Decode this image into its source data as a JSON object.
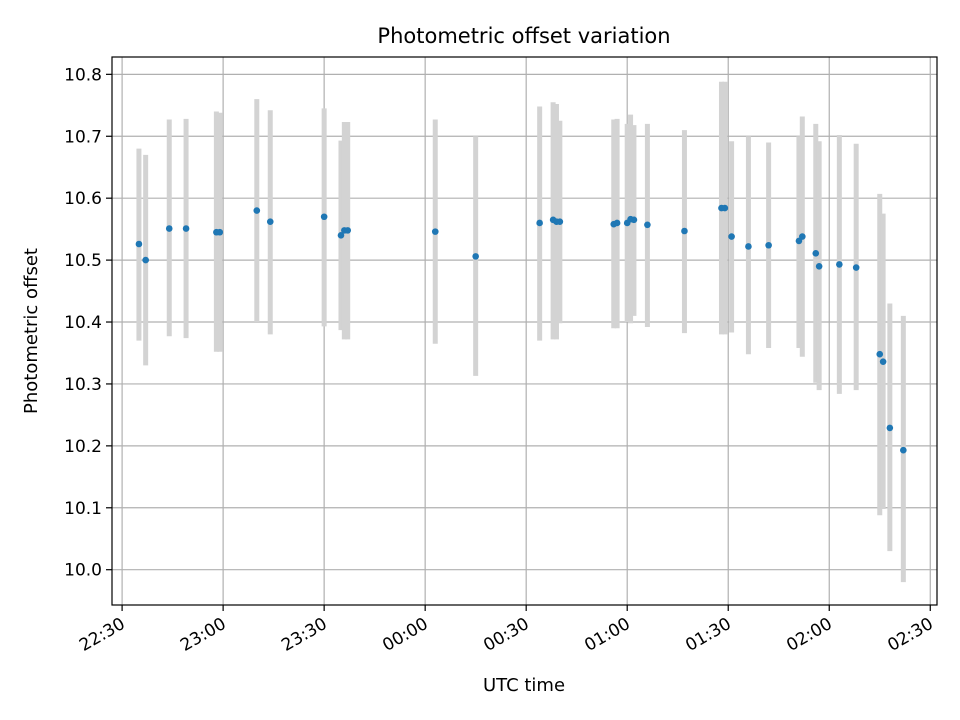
{
  "chart_data": {
    "type": "scatter",
    "title": "Photometric offset variation",
    "xlabel": "UTC time",
    "ylabel": "Photometric offset",
    "x_ticks": [
      "22:30",
      "23:00",
      "23:30",
      "00:00",
      "00:30",
      "01:00",
      "01:30",
      "02:00",
      "02:30"
    ],
    "y_ticks": [
      "10.0",
      "10.1",
      "10.2",
      "10.3",
      "10.4",
      "10.5",
      "10.6",
      "10.7",
      "10.8"
    ],
    "xlim": [
      "22:27",
      "02:32"
    ],
    "ylim": [
      9.943,
      10.828
    ],
    "grid": true,
    "point_color": "#1f77b4",
    "errorbar_color": "#d3d3d3",
    "points": [
      {
        "x": "22:35",
        "y": 10.526,
        "low": 10.37,
        "high": 10.68
      },
      {
        "x": "22:37",
        "y": 10.5,
        "low": 10.33,
        "high": 10.67
      },
      {
        "x": "22:44",
        "y": 10.551,
        "low": 10.377,
        "high": 10.727
      },
      {
        "x": "22:49",
        "y": 10.551,
        "low": 10.374,
        "high": 10.728
      },
      {
        "x": "22:58",
        "y": 10.545,
        "low": 10.352,
        "high": 10.74
      },
      {
        "x": "22:59",
        "y": 10.545,
        "low": 10.352,
        "high": 10.738
      },
      {
        "x": "23:10",
        "y": 10.58,
        "low": 10.4,
        "high": 10.76
      },
      {
        "x": "23:14",
        "y": 10.562,
        "low": 10.38,
        "high": 10.742
      },
      {
        "x": "23:30",
        "y": 10.57,
        "low": 10.393,
        "high": 10.745
      },
      {
        "x": "23:35",
        "y": 10.54,
        "low": 10.387,
        "high": 10.693
      },
      {
        "x": "23:36",
        "y": 10.548,
        "low": 10.372,
        "high": 10.723
      },
      {
        "x": "23:37",
        "y": 10.548,
        "low": 10.372,
        "high": 10.723
      },
      {
        "x": "00:03",
        "y": 10.546,
        "low": 10.365,
        "high": 10.727
      },
      {
        "x": "00:15",
        "y": 10.506,
        "low": 10.313,
        "high": 10.7
      },
      {
        "x": "00:34",
        "y": 10.56,
        "low": 10.37,
        "high": 10.748
      },
      {
        "x": "00:38",
        "y": 10.565,
        "low": 10.372,
        "high": 10.755
      },
      {
        "x": "00:39",
        "y": 10.562,
        "low": 10.372,
        "high": 10.752
      },
      {
        "x": "00:40",
        "y": 10.562,
        "low": 10.398,
        "high": 10.725
      },
      {
        "x": "00:56",
        "y": 10.558,
        "low": 10.39,
        "high": 10.727
      },
      {
        "x": "00:57",
        "y": 10.56,
        "low": 10.39,
        "high": 10.728
      },
      {
        "x": "01:00",
        "y": 10.56,
        "low": 10.4,
        "high": 10.72
      },
      {
        "x": "01:01",
        "y": 10.566,
        "low": 10.398,
        "high": 10.735
      },
      {
        "x": "01:02",
        "y": 10.565,
        "low": 10.41,
        "high": 10.718
      },
      {
        "x": "01:06",
        "y": 10.557,
        "low": 10.392,
        "high": 10.72
      },
      {
        "x": "01:17",
        "y": 10.547,
        "low": 10.382,
        "high": 10.71
      },
      {
        "x": "01:28",
        "y": 10.584,
        "low": 10.38,
        "high": 10.788
      },
      {
        "x": "01:29",
        "y": 10.584,
        "low": 10.38,
        "high": 10.788
      },
      {
        "x": "01:31",
        "y": 10.538,
        "low": 10.383,
        "high": 10.692
      },
      {
        "x": "01:36",
        "y": 10.522,
        "low": 10.348,
        "high": 10.7
      },
      {
        "x": "01:42",
        "y": 10.524,
        "low": 10.358,
        "high": 10.69
      },
      {
        "x": "01:51",
        "y": 10.531,
        "low": 10.358,
        "high": 10.7
      },
      {
        "x": "01:52",
        "y": 10.538,
        "low": 10.344,
        "high": 10.732
      },
      {
        "x": "01:56",
        "y": 10.511,
        "low": 10.302,
        "high": 10.72
      },
      {
        "x": "01:57",
        "y": 10.49,
        "low": 10.29,
        "high": 10.692
      },
      {
        "x": "02:03",
        "y": 10.493,
        "low": 10.284,
        "high": 10.702
      },
      {
        "x": "02:08",
        "y": 10.488,
        "low": 10.29,
        "high": 10.688
      },
      {
        "x": "02:15",
        "y": 10.348,
        "low": 10.088,
        "high": 10.607
      },
      {
        "x": "02:16",
        "y": 10.336,
        "low": 10.098,
        "high": 10.575
      },
      {
        "x": "02:18",
        "y": 10.229,
        "low": 10.03,
        "high": 10.43
      },
      {
        "x": "02:22",
        "y": 10.193,
        "low": 9.98,
        "high": 10.41
      }
    ]
  }
}
